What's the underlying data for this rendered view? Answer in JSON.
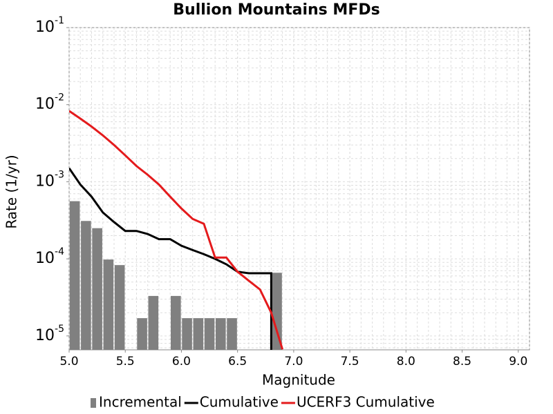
{
  "chart_data": {
    "type": "combo",
    "title": "Bullion Mountains MFDs",
    "x_label": "Magnitude",
    "y_label": "Rate (1/yr)",
    "log_y": true,
    "grid": true,
    "xlim": [
      5.0,
      9.1
    ],
    "ylim": [
      6.6e-06,
      0.1
    ],
    "xticks": [
      {
        "value": 5,
        "label": "5.0"
      },
      5.5,
      {
        "value": 6,
        "label": "6.0"
      },
      6.5,
      {
        "value": 7,
        "label": "7.0"
      },
      7.5,
      {
        "value": 8,
        "label": "8.0"
      },
      8.5,
      {
        "value": 9,
        "label": "9.0"
      }
    ],
    "yticks": [
      {
        "value": 0.1,
        "label": "10^-1"
      },
      {
        "value": 0.01,
        "label": "10^-2"
      },
      {
        "value": 0.001,
        "label": "10^-3"
      },
      {
        "value": 0.0001,
        "label": "10^-4"
      },
      {
        "value": 1e-05,
        "label": "10^-5"
      }
    ],
    "legend": "bottom",
    "series": [
      {
        "name": "Incremental",
        "type": "bar",
        "color": "#808080",
        "x": [
          5.05,
          5.15,
          5.25,
          5.35,
          5.45,
          5.65,
          5.75,
          5.95,
          6.05,
          6.15,
          6.25,
          6.35,
          6.45,
          6.85
        ],
        "values": [
          0.00056,
          0.00031,
          0.00025,
          9.8e-05,
          8.3e-05,
          1.7e-05,
          3.3e-05,
          3.3e-05,
          1.7e-05,
          1.7e-05,
          1.7e-05,
          1.7e-05,
          1.7e-05,
          6.6e-05
        ]
      },
      {
        "name": "Cumulative",
        "type": "line",
        "color": "#000000",
        "x": [
          5.0,
          5.1,
          5.2,
          5.3,
          5.4,
          5.5,
          5.6,
          5.7,
          5.8,
          5.9,
          6.0,
          6.1,
          6.2,
          6.3,
          6.4,
          6.5,
          6.6,
          6.7,
          6.8,
          6.8
        ],
        "values": [
          0.0015,
          0.00092,
          0.00064,
          0.0004,
          0.0003,
          0.00023,
          0.00023,
          0.00021,
          0.00018,
          0.00018,
          0.000148,
          0.00013,
          0.000115,
          0.0001,
          8.5e-05,
          6.8e-05,
          6.5e-05,
          6.5e-05,
          6.5e-05,
          1e-06
        ]
      },
      {
        "name": "UCERF3 Cumulative",
        "type": "line",
        "color": "#e41a1c",
        "x": [
          5.0,
          5.1,
          5.2,
          5.3,
          5.4,
          5.5,
          5.6,
          5.7,
          5.8,
          5.9,
          6.0,
          6.1,
          6.2,
          6.3,
          6.4,
          6.5,
          6.6,
          6.7,
          6.8,
          6.9
        ],
        "values": [
          0.0083,
          0.0066,
          0.0052,
          0.004,
          0.003,
          0.0022,
          0.0016,
          0.00123,
          0.00092,
          0.00064,
          0.00045,
          0.00033,
          0.000285,
          0.000104,
          0.000104,
          6.8e-05,
          5.2e-05,
          4e-05,
          2e-05,
          6.7e-06
        ]
      }
    ]
  }
}
